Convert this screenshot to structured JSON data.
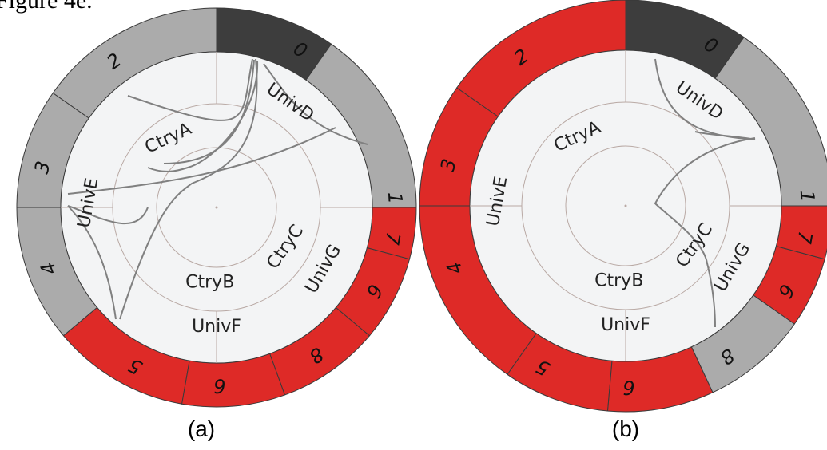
{
  "figure_caption_fragment": "Figure 4e.",
  "colors": {
    "dark": "#3d3d3d",
    "gray": "#ababab",
    "red": "#de2a27",
    "inner_bg": "#f3f4f5",
    "ring_line": "#b9a9a4",
    "link": "#808080",
    "edge": "#3a3a3a"
  },
  "panels": [
    {
      "label": "(a)",
      "segments": [
        {
          "text": "0",
          "fill": "gray"
        },
        {
          "text": "1",
          "fill": "dark"
        },
        {
          "text": "2",
          "fill": "gray"
        },
        {
          "text": "3",
          "fill": "gray"
        },
        {
          "text": "4",
          "fill": "gray"
        },
        {
          "text": "5",
          "fill": "red"
        },
        {
          "text": "6",
          "fill": "red"
        },
        {
          "text": "8",
          "fill": "red"
        },
        {
          "text": "6",
          "fill": "red"
        },
        {
          "text": "7",
          "fill": "red"
        }
      ],
      "rings": [
        "UnivD",
        "UnivE",
        "UnivF",
        "UnivG",
        "CtryA",
        "CtryB",
        "CtryC"
      ]
    },
    {
      "label": "(b)",
      "segments": [
        {
          "text": "0",
          "fill": "gray"
        },
        {
          "text": "1",
          "fill": "dark"
        },
        {
          "text": "2",
          "fill": "red"
        },
        {
          "text": "3",
          "fill": "red"
        },
        {
          "text": "4",
          "fill": "red"
        },
        {
          "text": "5",
          "fill": "red"
        },
        {
          "text": "6",
          "fill": "red"
        },
        {
          "text": "8",
          "fill": "gray"
        },
        {
          "text": "6",
          "fill": "red"
        },
        {
          "text": "7",
          "fill": "red"
        }
      ],
      "rings": [
        "UnivD",
        "UnivE",
        "UnivF",
        "UnivG",
        "CtryA",
        "CtryB",
        "CtryC"
      ]
    }
  ]
}
